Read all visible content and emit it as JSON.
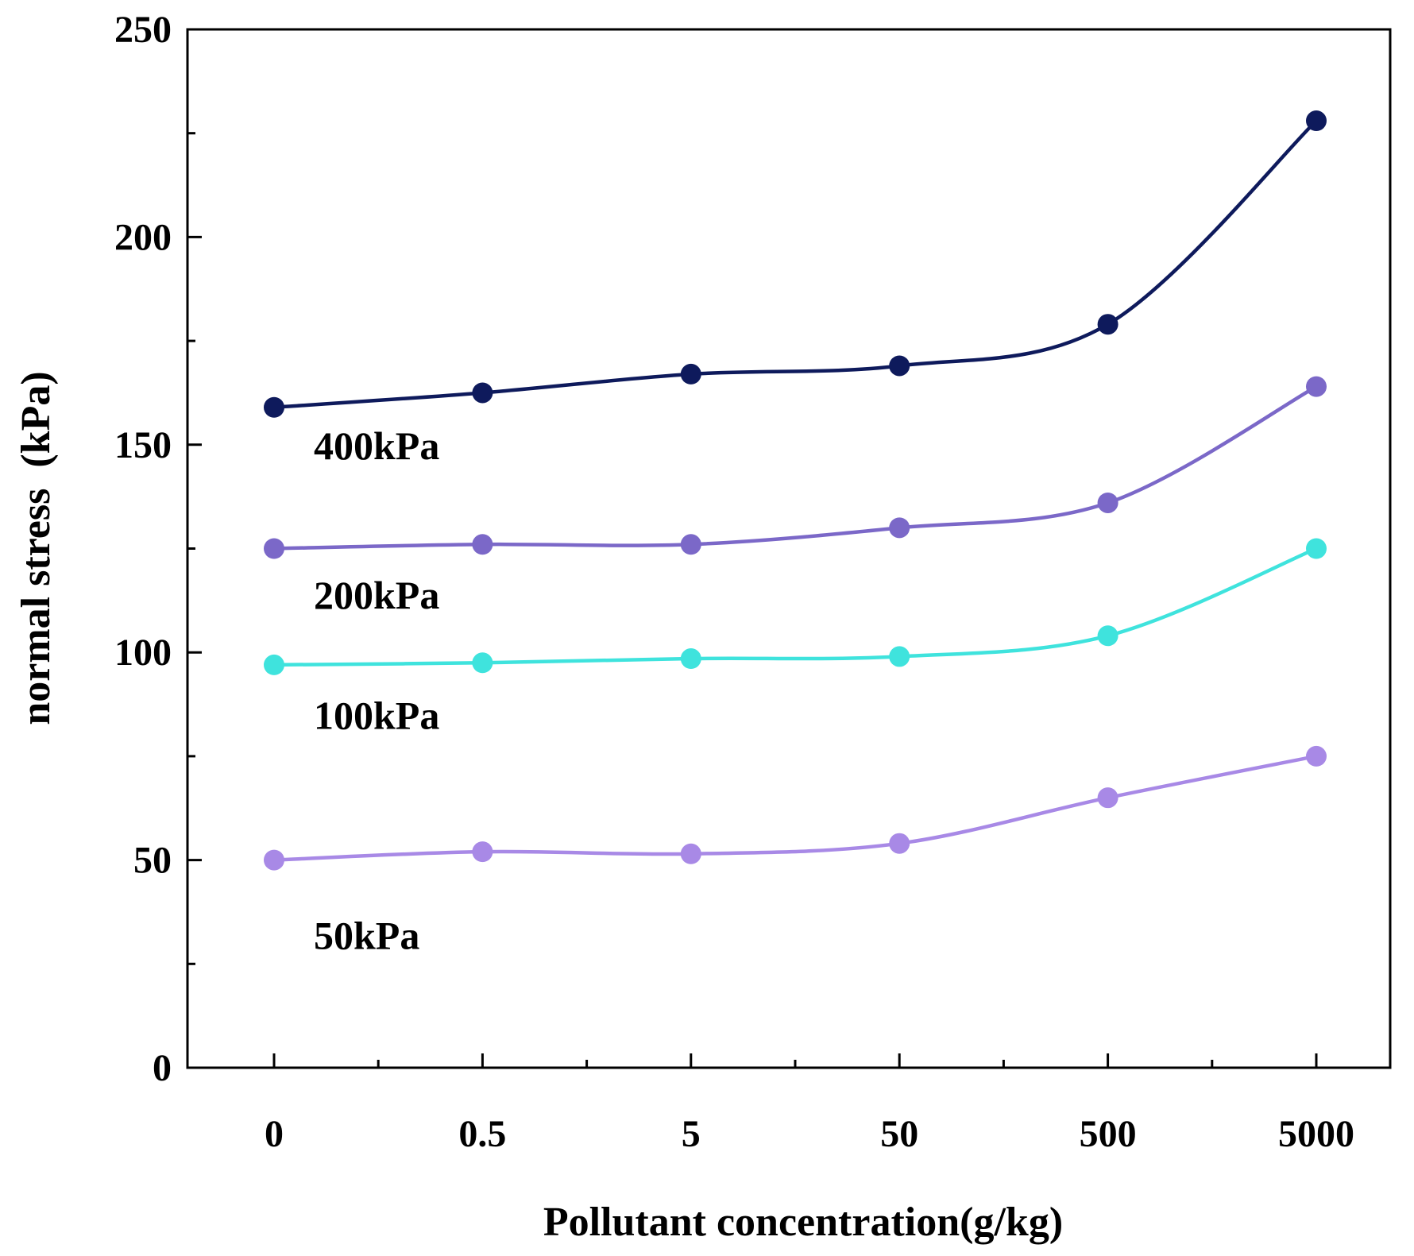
{
  "chart_data": {
    "type": "line",
    "title": "",
    "xlabel": "Pollutant concentration(g/kg)",
    "ylabel": "normal stress  (kPa)",
    "categories": [
      "0",
      "0.5",
      "5",
      "50",
      "500",
      "5000"
    ],
    "ylim": [
      0,
      250
    ],
    "yticks": [
      0,
      50,
      100,
      150,
      200,
      250
    ],
    "grid": false,
    "series": [
      {
        "name": "400kPa",
        "label": "400kPa",
        "color": "#0e1a5c",
        "label_at": [
          0,
          150
        ],
        "values": [
          159,
          162.5,
          167,
          169,
          179,
          228
        ]
      },
      {
        "name": "200kPa",
        "label": "200kPa",
        "color": "#7b68c8",
        "label_at": [
          0,
          114
        ],
        "values": [
          125,
          126,
          126,
          130,
          136,
          164
        ]
      },
      {
        "name": "100kPa",
        "label": "100kPa",
        "color": "#3fe3dd",
        "label_at": [
          0,
          85
        ],
        "values": [
          97,
          97.5,
          98.5,
          99,
          104,
          125
        ]
      },
      {
        "name": "50kPa",
        "label": "50kPa",
        "color": "#a889e6",
        "label_at": [
          0,
          32
        ],
        "values": [
          50,
          52,
          51.5,
          54,
          65,
          75
        ]
      }
    ]
  }
}
